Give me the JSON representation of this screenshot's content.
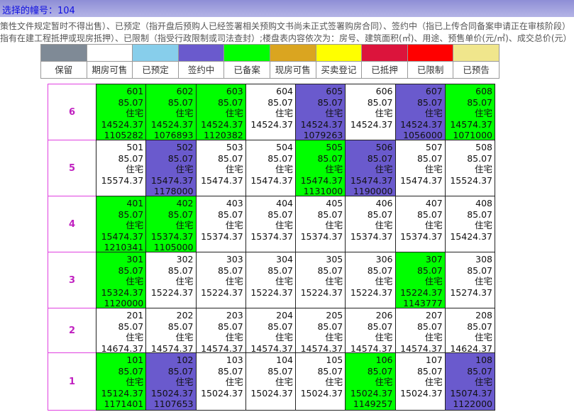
{
  "header": {
    "title": "选择的幢号：104"
  },
  "notes": [
    "策性文件规定暂时不得出售）、已预定（指开盘后预购人已经签署相关预购文书尚未正式签署购房合同）、签约中（指已上传合同备案申请正在审核阶段）",
    "指有在建工程抵押或现房抵押）、已限制（指受行政限制或司法查封）;楼盘表内容依次为：房号、建筑面积(㎡)、用途、预售单价(元/㎡)、成交总价(元）"
  ],
  "legend": [
    {
      "label": "保留",
      "color": "#7f8a96"
    },
    {
      "label": "期房可售",
      "color": "#ffffff"
    },
    {
      "label": "已预定",
      "color": "#87ceeb"
    },
    {
      "label": "签约中",
      "color": "#6a5acd"
    },
    {
      "label": "已备案",
      "color": "#00ff00"
    },
    {
      "label": "现房可售",
      "color": "#daa520"
    },
    {
      "label": "买卖登记",
      "color": "#ffff00"
    },
    {
      "label": "已抵押",
      "color": "#dc143c"
    },
    {
      "label": "已限制",
      "color": "#ff0000"
    },
    {
      "label": "已预告",
      "color": "#f0e68c"
    }
  ],
  "rows": [
    {
      "floor": "6",
      "units": [
        {
          "room": "601",
          "area": "85.07",
          "use": "住宅",
          "price": "14524.37",
          "total": "1105282",
          "color": "#00ff00"
        },
        {
          "room": "602",
          "area": "85.07",
          "use": "住宅",
          "price": "14524.37",
          "total": "1076893",
          "color": "#00ff00"
        },
        {
          "room": "603",
          "area": "85.07",
          "use": "住宅",
          "price": "14524.37",
          "total": "1120382",
          "color": "#00ff00"
        },
        {
          "room": "604",
          "area": "85.07",
          "use": "住宅",
          "price": "14524.37",
          "color": "#ffffff"
        },
        {
          "room": "605",
          "area": "85.07",
          "use": "住宅",
          "price": "14524.37",
          "total": "1079263",
          "color": "#6a5acd"
        },
        {
          "room": "606",
          "area": "85.07",
          "use": "住宅",
          "price": "14524.37",
          "color": "#ffffff"
        },
        {
          "room": "607",
          "area": "85.07",
          "use": "住宅",
          "price": "14524.37",
          "total": "1056000",
          "color": "#6a5acd"
        },
        {
          "room": "608",
          "area": "85.07",
          "use": "住宅",
          "price": "14574.37",
          "total": "1071000",
          "color": "#00ff00"
        }
      ]
    },
    {
      "floor": "5",
      "units": [
        {
          "room": "501",
          "area": "85.07",
          "use": "住宅",
          "price": "15574.37",
          "color": "#ffffff"
        },
        {
          "room": "502",
          "area": "85.07",
          "use": "住宅",
          "price": "15474.37",
          "total": "1178000",
          "color": "#6a5acd"
        },
        {
          "room": "503",
          "area": "85.07",
          "use": "住宅",
          "price": "15474.37",
          "color": "#ffffff"
        },
        {
          "room": "504",
          "area": "85.07",
          "use": "住宅",
          "price": "15474.37",
          "color": "#ffffff"
        },
        {
          "room": "505",
          "area": "85.07",
          "use": "住宅",
          "price": "15474.37",
          "total": "1131000",
          "color": "#00ff00"
        },
        {
          "room": "506",
          "area": "85.07",
          "use": "住宅",
          "price": "15474.37",
          "total": "1190000",
          "color": "#6a5acd"
        },
        {
          "room": "507",
          "area": "85.07",
          "use": "住宅",
          "price": "15474.37",
          "color": "#ffffff"
        },
        {
          "room": "508",
          "area": "85.07",
          "use": "住宅",
          "price": "15524.37",
          "color": "#ffffff"
        }
      ]
    },
    {
      "floor": "4",
      "units": [
        {
          "room": "401",
          "area": "85.07",
          "use": "住宅",
          "price": "15474.37",
          "total": "1210341",
          "color": "#00ff00"
        },
        {
          "room": "402",
          "area": "85.07",
          "use": "住宅",
          "price": "15374.37",
          "total": "1105000",
          "color": "#00ff00"
        },
        {
          "room": "403",
          "area": "85.07",
          "use": "住宅",
          "price": "15374.37",
          "color": "#ffffff"
        },
        {
          "room": "404",
          "area": "85.07",
          "use": "住宅",
          "price": "15374.37",
          "color": "#ffffff"
        },
        {
          "room": "405",
          "area": "85.07",
          "use": "住宅",
          "price": "15374.37",
          "color": "#ffffff"
        },
        {
          "room": "406",
          "area": "85.07",
          "use": "住宅",
          "price": "15374.37",
          "color": "#ffffff"
        },
        {
          "room": "407",
          "area": "85.07",
          "use": "住宅",
          "price": "15374.37",
          "color": "#ffffff"
        },
        {
          "room": "408",
          "area": "85.07",
          "use": "住宅",
          "price": "15424.37",
          "color": "#ffffff"
        }
      ]
    },
    {
      "floor": "3",
      "units": [
        {
          "room": "301",
          "area": "85.07",
          "use": "住宅",
          "price": "15324.37",
          "total": "1120000",
          "color": "#00ff00"
        },
        {
          "room": "302",
          "area": "85.07",
          "use": "住宅",
          "price": "15224.37",
          "color": "#ffffff"
        },
        {
          "room": "303",
          "area": "85.07",
          "use": "住宅",
          "price": "15224.37",
          "color": "#ffffff"
        },
        {
          "room": "304",
          "area": "85.07",
          "use": "住宅",
          "price": "15224.37",
          "color": "#ffffff"
        },
        {
          "room": "305",
          "area": "85.07",
          "use": "住宅",
          "price": "15224.37",
          "color": "#ffffff"
        },
        {
          "room": "306",
          "area": "85.07",
          "use": "住宅",
          "price": "15224.37",
          "color": "#ffffff"
        },
        {
          "room": "307",
          "area": "85.07",
          "use": "住宅",
          "price": "15224.37",
          "total": "1143777",
          "color": "#00ff00"
        },
        {
          "room": "308",
          "area": "85.07",
          "use": "住宅",
          "price": "15274.37",
          "color": "#ffffff"
        }
      ]
    },
    {
      "floor": "2",
      "units": [
        {
          "room": "201",
          "area": "85.07",
          "use": "住宅",
          "price": "14674.37",
          "color": "#ffffff"
        },
        {
          "room": "202",
          "area": "85.07",
          "use": "住宅",
          "price": "14574.37",
          "color": "#ffffff"
        },
        {
          "room": "203",
          "area": "85.07",
          "use": "住宅",
          "price": "14574.37",
          "color": "#ffffff"
        },
        {
          "room": "204",
          "area": "85.07",
          "use": "住宅",
          "price": "14574.37",
          "color": "#ffffff"
        },
        {
          "room": "205",
          "area": "85.07",
          "use": "住宅",
          "price": "14574.37",
          "color": "#ffffff"
        },
        {
          "room": "206",
          "area": "85.07",
          "use": "住宅",
          "price": "14574.37",
          "color": "#ffffff"
        },
        {
          "room": "207",
          "area": "85.07",
          "use": "住宅",
          "price": "14574.37",
          "color": "#ffffff"
        },
        {
          "room": "208",
          "area": "85.07",
          "use": "住宅",
          "price": "14624.37",
          "color": "#ffffff"
        }
      ]
    },
    {
      "floor": "1",
      "units": [
        {
          "room": "101",
          "area": "85.07",
          "use": "住宅",
          "price": "15124.37",
          "total": "1171401",
          "color": "#00ff00"
        },
        {
          "room": "102",
          "area": "85.07",
          "use": "住宅",
          "price": "15024.37",
          "total": "1107653",
          "color": "#6a5acd"
        },
        {
          "room": "103",
          "area": "85.07",
          "use": "住宅",
          "price": "15024.37",
          "color": "#ffffff"
        },
        {
          "room": "104",
          "area": "85.07",
          "use": "住宅",
          "price": "15024.37",
          "color": "#ffffff"
        },
        {
          "room": "105",
          "area": "85.07",
          "use": "住宅",
          "price": "15024.37",
          "color": "#ffffff"
        },
        {
          "room": "106",
          "area": "85.07",
          "use": "住宅",
          "price": "15024.37",
          "total": "1149257",
          "color": "#00ff00"
        },
        {
          "room": "107",
          "area": "85.07",
          "use": "住宅",
          "price": "15024.37",
          "color": "#ffffff"
        },
        {
          "room": "108",
          "area": "85.07",
          "use": "住宅",
          "price": "15074.37",
          "total": "1122000",
          "color": "#6a5acd"
        }
      ]
    }
  ]
}
